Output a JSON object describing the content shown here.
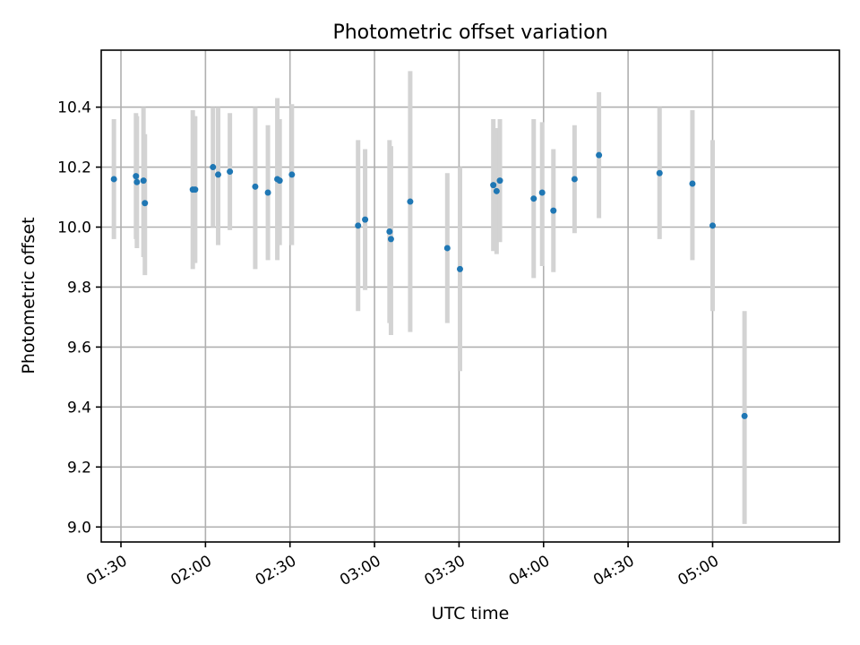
{
  "chart_data": {
    "type": "scatter",
    "title": "Photometric offset variation",
    "xlabel": "UTC time",
    "ylabel": "Photometric offset",
    "x_axis_kind": "time",
    "xlim": [
      "01:23",
      "05:45"
    ],
    "ylim": [
      8.95,
      10.59
    ],
    "x_ticks": [
      "01:30",
      "02:00",
      "02:30",
      "03:00",
      "03:30",
      "04:00",
      "04:30",
      "05:00"
    ],
    "y_ticks": [
      "9.0",
      "9.2",
      "9.4",
      "9.6",
      "9.8",
      "10.0",
      "10.2",
      "10.4"
    ],
    "grid": true,
    "point_color": "#1f77b4",
    "errorbar_color": "#d3d3d3",
    "series": [
      {
        "points": [
          {
            "x": "01:27:30",
            "y": 10.16,
            "low": 9.96,
            "high": 10.36
          },
          {
            "x": "01:35:20",
            "y": 10.17,
            "low": 9.96,
            "high": 10.38
          },
          {
            "x": "01:35:40",
            "y": 10.15,
            "low": 9.93,
            "high": 10.37
          },
          {
            "x": "01:38:00",
            "y": 10.155,
            "low": 9.9,
            "high": 10.4
          },
          {
            "x": "01:38:30",
            "y": 10.08,
            "low": 9.84,
            "high": 10.31
          },
          {
            "x": "01:55:30",
            "y": 10.125,
            "low": 9.86,
            "high": 10.39
          },
          {
            "x": "01:56:20",
            "y": 10.125,
            "low": 9.88,
            "high": 10.37
          },
          {
            "x": "02:02:40",
            "y": 10.2,
            "low": 10.0,
            "high": 10.4
          },
          {
            "x": "02:04:30",
            "y": 10.175,
            "low": 9.94,
            "high": 10.4
          },
          {
            "x": "02:08:40",
            "y": 10.185,
            "low": 9.99,
            "high": 10.38
          },
          {
            "x": "02:17:40",
            "y": 10.135,
            "low": 9.86,
            "high": 10.4
          },
          {
            "x": "02:22:10",
            "y": 10.115,
            "low": 9.89,
            "high": 10.34
          },
          {
            "x": "02:25:30",
            "y": 10.16,
            "low": 9.89,
            "high": 10.43
          },
          {
            "x": "02:26:20",
            "y": 10.155,
            "low": 9.94,
            "high": 10.36
          },
          {
            "x": "02:30:40",
            "y": 10.175,
            "low": 9.94,
            "high": 10.41
          },
          {
            "x": "02:54:10",
            "y": 10.005,
            "low": 9.72,
            "high": 10.29
          },
          {
            "x": "02:56:40",
            "y": 10.025,
            "low": 9.79,
            "high": 10.26
          },
          {
            "x": "03:05:20",
            "y": 9.985,
            "low": 9.68,
            "high": 10.29
          },
          {
            "x": "03:05:50",
            "y": 9.96,
            "low": 9.64,
            "high": 10.27
          },
          {
            "x": "03:12:40",
            "y": 10.085,
            "low": 9.65,
            "high": 10.52
          },
          {
            "x": "03:25:50",
            "y": 9.93,
            "low": 9.68,
            "high": 10.18
          },
          {
            "x": "03:30:20",
            "y": 9.86,
            "low": 9.52,
            "high": 10.2
          },
          {
            "x": "03:42:10",
            "y": 10.14,
            "low": 9.92,
            "high": 10.36
          },
          {
            "x": "03:43:20",
            "y": 10.12,
            "low": 9.91,
            "high": 10.33
          },
          {
            "x": "03:44:30",
            "y": 10.155,
            "low": 9.95,
            "high": 10.36
          },
          {
            "x": "03:56:30",
            "y": 10.095,
            "low": 9.83,
            "high": 10.36
          },
          {
            "x": "03:59:30",
            "y": 10.115,
            "low": 9.87,
            "high": 10.35
          },
          {
            "x": "04:03:30",
            "y": 10.055,
            "low": 9.85,
            "high": 10.26
          },
          {
            "x": "04:11:00",
            "y": 10.16,
            "low": 9.98,
            "high": 10.34
          },
          {
            "x": "04:19:40",
            "y": 10.24,
            "low": 10.03,
            "high": 10.45
          },
          {
            "x": "04:41:10",
            "y": 10.18,
            "low": 9.96,
            "high": 10.4
          },
          {
            "x": "04:52:50",
            "y": 10.145,
            "low": 9.89,
            "high": 10.39
          },
          {
            "x": "05:00:00",
            "y": 10.005,
            "low": 9.72,
            "high": 10.29
          },
          {
            "x": "05:11:20",
            "y": 9.37,
            "low": 9.01,
            "high": 9.72
          }
        ]
      }
    ]
  }
}
